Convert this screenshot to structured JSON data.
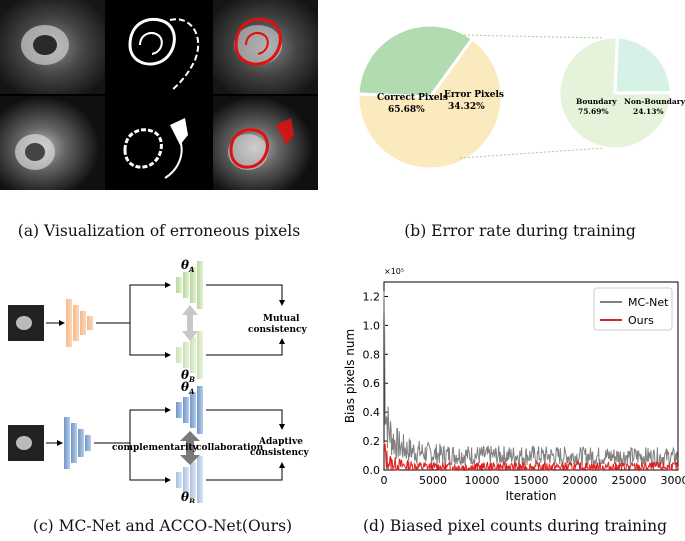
{
  "captions": {
    "a": "(a) Visualization of erroneous pixels",
    "b": "(b) Error rate during training",
    "c": "(c) MC-Net and ACCO-Net(Ours)",
    "d": "(d) Biased pixel counts during training"
  },
  "pie": {
    "main": [
      {
        "label": "Correct Pixels",
        "value": "65.68%",
        "pct": 65.68,
        "color": "#faeabd"
      },
      {
        "label": "Error Pixels",
        "value": "34.32%",
        "pct": 34.32,
        "color": "#b3dbb0"
      }
    ],
    "sub": [
      {
        "label": "Boundary",
        "value": "75.69%",
        "pct": 75.69,
        "color": "#e4f3d9"
      },
      {
        "label": "Non-Boundary",
        "value": "24.13%",
        "pct": 24.13,
        "color": "#d6f1e5"
      }
    ]
  },
  "diagram": {
    "mc": {
      "theta_a": "θ",
      "sub_a": "A",
      "theta_b": "θ",
      "sub_b": "B",
      "label1": "Mutual",
      "label2": "consistency"
    },
    "acco": {
      "theta_a": "θ",
      "sub_a": "A",
      "theta_b": "θ",
      "sub_b": "B",
      "label1": "Adaptive",
      "label2": "consistency",
      "left": "complementarity",
      "right": "collaboration"
    }
  },
  "chart_data": {
    "type": "line",
    "xlabel": "Iteration",
    "ylabel": "Bias pixels num",
    "y_exponent": "×10⁵",
    "xlim": [
      0,
      30000
    ],
    "ylim": [
      0,
      1.3
    ],
    "xticks": [
      0,
      5000,
      10000,
      15000,
      20000,
      25000,
      30000
    ],
    "yticks": [
      0.0,
      0.2,
      0.4,
      0.6,
      0.8,
      1.0,
      1.2
    ],
    "legend_position": "top-right",
    "series": [
      {
        "name": "MC-Net",
        "color": "#808080",
        "x": [
          0,
          100,
          200,
          400,
          700,
          1000,
          1500,
          2000,
          3000,
          4000,
          5000,
          7500,
          10000,
          15000,
          20000,
          25000,
          30000
        ],
        "values": [
          1.25,
          0.65,
          0.42,
          0.3,
          0.24,
          0.2,
          0.17,
          0.15,
          0.13,
          0.12,
          0.11,
          0.105,
          0.1,
          0.1,
          0.095,
          0.095,
          0.09
        ]
      },
      {
        "name": "Ours",
        "color": "#e02020",
        "x": [
          0,
          100,
          300,
          600,
          1000,
          2000,
          3000,
          5000,
          10000,
          20000,
          30000
        ],
        "values": [
          0.13,
          0.1,
          0.07,
          0.05,
          0.04,
          0.03,
          0.025,
          0.02,
          0.02,
          0.02,
          0.02
        ]
      }
    ]
  }
}
